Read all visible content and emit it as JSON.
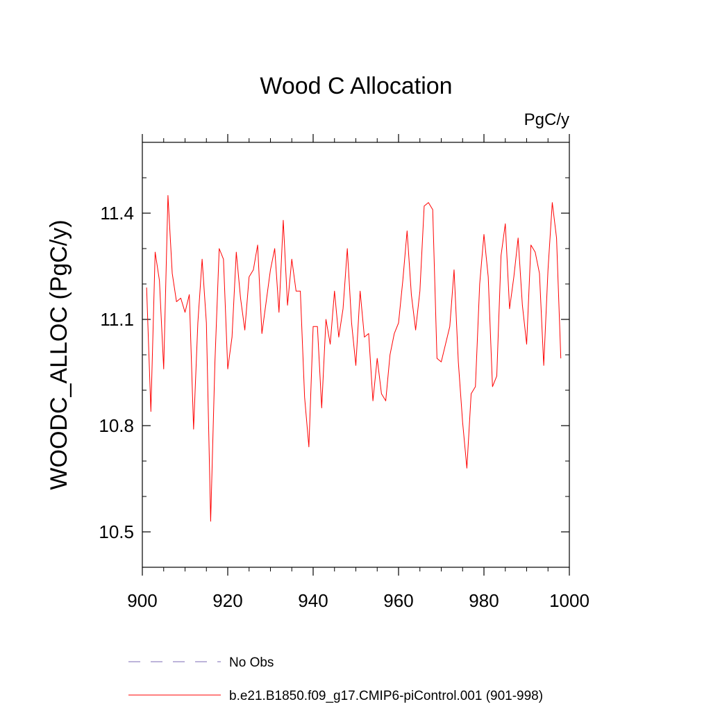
{
  "chart_data": {
    "type": "line",
    "title": "Wood C Allocation",
    "units_label": "PgC/y",
    "xlabel": "",
    "ylabel": "WOODC_ALLOC  (PgC/y)",
    "xlim": [
      900,
      1000
    ],
    "ylim": [
      10.4,
      11.6
    ],
    "xticks": [
      900,
      920,
      940,
      960,
      980,
      1000
    ],
    "xtick_labels": [
      "900",
      "920",
      "940",
      "960",
      "980",
      "1000"
    ],
    "x_minor_step": 5,
    "yticks": [
      10.5,
      10.8,
      11.1,
      11.4
    ],
    "ytick_labels": [
      "10.5",
      "10.8",
      "11.1",
      "11.4"
    ],
    "y_minor_step": 0.1,
    "grid": false,
    "legend": "bottom",
    "series": [
      {
        "name": "No Obs",
        "color": "#7b68b5",
        "dash": "dashed",
        "x": [],
        "values": []
      },
      {
        "name": "b.e21.B1850.f09_g17.CMIP6-piControl.001 (901-998)",
        "color": "#ff0000",
        "dash": "solid",
        "x": [
          901,
          902,
          903,
          904,
          905,
          906,
          907,
          908,
          909,
          910,
          911,
          912,
          913,
          914,
          915,
          916,
          917,
          918,
          919,
          920,
          921,
          922,
          923,
          924,
          925,
          926,
          927,
          928,
          929,
          930,
          931,
          932,
          933,
          934,
          935,
          936,
          937,
          938,
          939,
          940,
          941,
          942,
          943,
          944,
          945,
          946,
          947,
          948,
          949,
          950,
          951,
          952,
          953,
          954,
          955,
          956,
          957,
          958,
          959,
          960,
          961,
          962,
          963,
          964,
          965,
          966,
          967,
          968,
          969,
          970,
          971,
          972,
          973,
          974,
          975,
          976,
          977,
          978,
          979,
          980,
          981,
          982,
          983,
          984,
          985,
          986,
          987,
          988,
          989,
          990,
          991,
          992,
          993,
          994,
          995,
          996,
          997,
          998
        ],
        "values": [
          11.19,
          10.84,
          11.29,
          11.21,
          10.96,
          11.45,
          11.23,
          11.15,
          11.16,
          11.12,
          11.17,
          10.79,
          11.09,
          11.27,
          11.09,
          10.53,
          10.98,
          11.3,
          11.27,
          10.96,
          11.05,
          11.29,
          11.16,
          11.07,
          11.22,
          11.24,
          11.31,
          11.06,
          11.15,
          11.24,
          11.3,
          11.12,
          11.38,
          11.14,
          11.27,
          11.18,
          11.18,
          10.88,
          10.74,
          11.08,
          11.08,
          10.85,
          11.1,
          11.03,
          11.18,
          11.05,
          11.13,
          11.3,
          11.09,
          10.97,
          11.18,
          11.05,
          11.06,
          10.87,
          10.99,
          10.89,
          10.87,
          11.0,
          11.06,
          11.09,
          11.21,
          11.35,
          11.17,
          11.07,
          11.18,
          11.42,
          11.43,
          11.41,
          10.99,
          10.98,
          11.03,
          11.08,
          11.24,
          10.98,
          10.81,
          10.68,
          10.89,
          10.91,
          11.2,
          11.34,
          11.22,
          10.91,
          10.94,
          11.28,
          11.37,
          11.13,
          11.22,
          11.33,
          11.14,
          11.03,
          11.31,
          11.29,
          11.23,
          10.97,
          11.24,
          11.43,
          11.33,
          10.99
        ]
      }
    ]
  }
}
